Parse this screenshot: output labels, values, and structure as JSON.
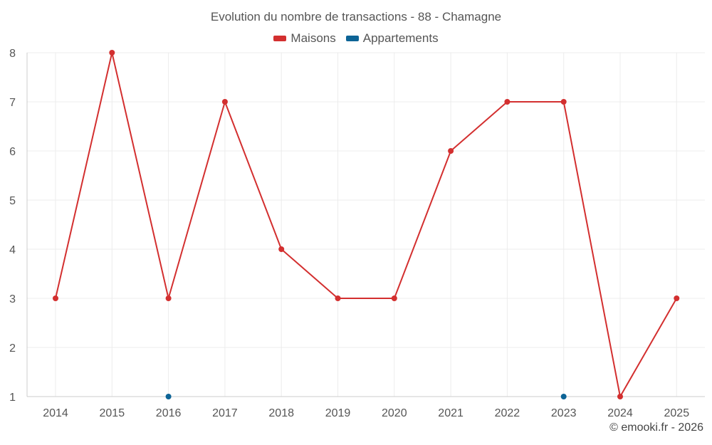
{
  "chart_data": {
    "type": "line",
    "title": "Evolution du nombre de transactions - 88 - Chamagne",
    "categories": [
      "2014",
      "2015",
      "2016",
      "2017",
      "2018",
      "2019",
      "2020",
      "2021",
      "2022",
      "2023",
      "2024",
      "2025"
    ],
    "series": [
      {
        "name": "Maisons",
        "color": "#d32f2f",
        "values": [
          3,
          8,
          3,
          7,
          4,
          3,
          3,
          6,
          7,
          7,
          1,
          3
        ]
      },
      {
        "name": "Appartements",
        "color": "#0d6496",
        "values": [
          null,
          null,
          1,
          null,
          null,
          null,
          null,
          null,
          null,
          1,
          null,
          null
        ]
      }
    ],
    "ylim": [
      1,
      8
    ],
    "yticks": [
      "1",
      "2",
      "3",
      "4",
      "5",
      "6",
      "7",
      "8"
    ],
    "grid": true,
    "legend_position": "top-center"
  },
  "credit": "© emooki.fr - 2026"
}
